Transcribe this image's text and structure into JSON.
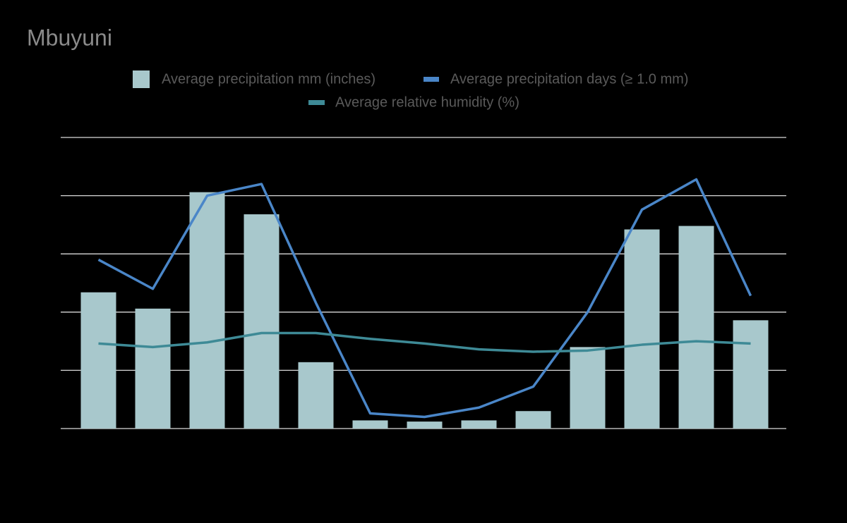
{
  "chart_data": {
    "type": "bar",
    "title": "Mbuyuni",
    "categories": [
      null,
      null,
      null,
      null,
      null,
      null,
      null,
      null,
      null,
      null,
      null,
      null,
      null
    ],
    "series": [
      {
        "name": "Average precipitation mm (inches)",
        "type": "bar",
        "color": "#a8c8cc",
        "values": [
          117,
          103,
          203,
          184,
          57,
          7,
          6,
          7,
          15,
          70,
          171,
          174,
          93
        ]
      },
      {
        "name": "Average precipitation days (≥ 1.0 mm)",
        "type": "line",
        "color": "#4a86c8",
        "values": [
          145,
          120,
          200,
          210,
          108,
          13,
          10,
          18,
          36,
          100,
          188,
          214,
          114
        ]
      },
      {
        "name": "Average relative humidity (%)",
        "type": "line",
        "color": "#3e8a96",
        "values": [
          73,
          70,
          74,
          82,
          82,
          77,
          73,
          68,
          66,
          67,
          72,
          75,
          73
        ]
      }
    ],
    "ylim": [
      0,
      250
    ],
    "yticks": [
      0,
      50,
      100,
      150,
      200,
      250
    ],
    "grid": true
  }
}
